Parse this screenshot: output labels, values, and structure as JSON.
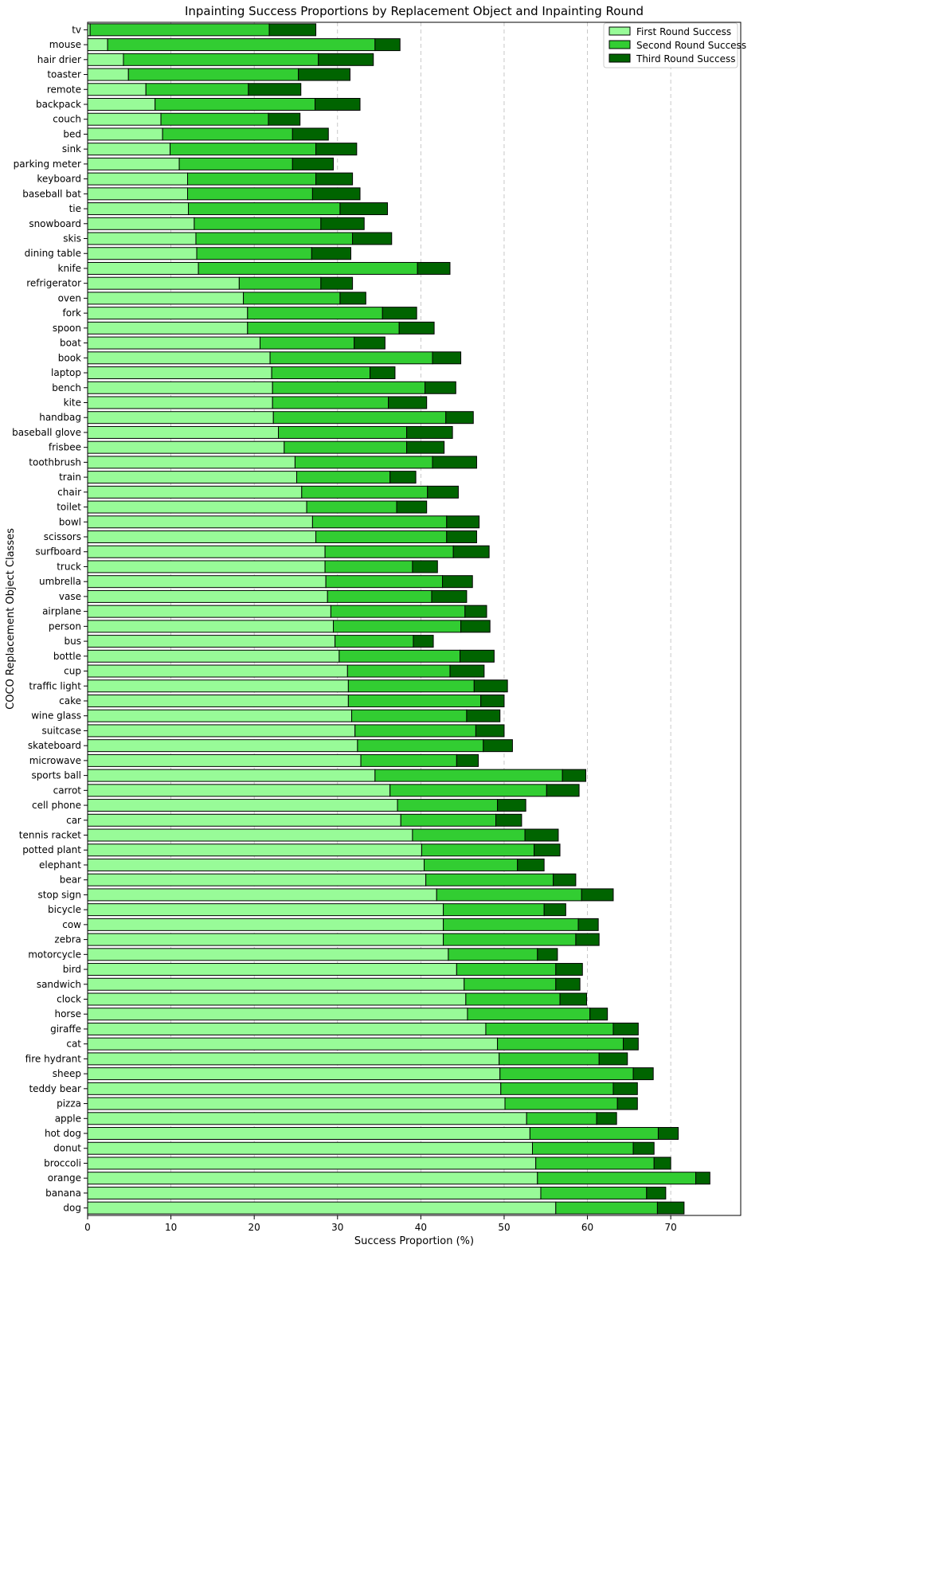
{
  "chart_data": {
    "type": "bar",
    "orientation": "horizontal",
    "stacked": true,
    "title": "Inpainting Success Proportions by Replacement Object and Inpainting Round",
    "xlabel": "Success Proportion (%)",
    "ylabel": "COCO Replacement Object Classes",
    "xlim": [
      0,
      78.4
    ],
    "xticks": [
      "0",
      "10",
      "20",
      "30",
      "40",
      "50",
      "60",
      "70"
    ],
    "grid": "x, dashed",
    "legend": "top-right",
    "categories": [
      "tv",
      "mouse",
      "hair drier",
      "toaster",
      "remote",
      "backpack",
      "couch",
      "bed",
      "sink",
      "parking meter",
      "keyboard",
      "baseball bat",
      "tie",
      "snowboard",
      "skis",
      "dining table",
      "knife",
      "refrigerator",
      "oven",
      "fork",
      "spoon",
      "boat",
      "book",
      "laptop",
      "bench",
      "kite",
      "handbag",
      "baseball glove",
      "frisbee",
      "toothbrush",
      "train",
      "chair",
      "toilet",
      "bowl",
      "scissors",
      "surfboard",
      "truck",
      "umbrella",
      "vase",
      "airplane",
      "person",
      "bus",
      "bottle",
      "cup",
      "traffic light",
      "cake",
      "wine glass",
      "suitcase",
      "skateboard",
      "microwave",
      "sports ball",
      "carrot",
      "cell phone",
      "car",
      "tennis racket",
      "potted plant",
      "elephant",
      "bear",
      "stop sign",
      "bicycle",
      "cow",
      "zebra",
      "motorcycle",
      "bird",
      "sandwich",
      "clock",
      "horse",
      "giraffe",
      "cat",
      "fire hydrant",
      "sheep",
      "teddy bear",
      "pizza",
      "apple",
      "hot dog",
      "donut",
      "broccoli",
      "orange",
      "banana",
      "dog"
    ],
    "series": [
      {
        "name": "First Round Success",
        "color": "#98fb98",
        "values": [
          0.3,
          2.4,
          4.3,
          4.9,
          7.0,
          8.1,
          8.8,
          9.0,
          9.9,
          11.0,
          12.0,
          12.0,
          12.1,
          12.8,
          13.0,
          13.1,
          13.3,
          18.2,
          18.7,
          19.2,
          19.2,
          20.7,
          21.9,
          22.1,
          22.2,
          22.2,
          22.3,
          22.9,
          23.6,
          24.9,
          25.1,
          25.7,
          26.3,
          27.0,
          27.4,
          28.5,
          28.5,
          28.6,
          28.8,
          29.2,
          29.5,
          29.7,
          30.2,
          31.2,
          31.3,
          31.3,
          31.7,
          32.1,
          32.4,
          32.8,
          34.5,
          36.3,
          37.2,
          37.6,
          39.0,
          40.1,
          40.4,
          40.6,
          41.9,
          42.7,
          42.7,
          42.7,
          43.3,
          44.3,
          45.2,
          45.4,
          45.6,
          47.8,
          49.2,
          49.4,
          49.5,
          49.6,
          50.1,
          52.7,
          53.1,
          53.4,
          53.8,
          54.0,
          54.4,
          56.2
        ]
      },
      {
        "name": "Second Round Success",
        "color": "#32cd32",
        "values": [
          21.5,
          32.1,
          23.4,
          20.4,
          12.3,
          19.2,
          12.9,
          15.6,
          17.5,
          13.6,
          15.4,
          15.0,
          18.2,
          15.2,
          18.8,
          13.8,
          26.3,
          9.8,
          11.6,
          16.2,
          18.2,
          11.3,
          19.5,
          11.8,
          18.3,
          13.9,
          20.7,
          15.4,
          14.7,
          16.5,
          11.2,
          15.1,
          10.8,
          16.1,
          15.7,
          15.4,
          10.5,
          14.0,
          12.5,
          16.1,
          15.3,
          9.4,
          14.5,
          12.3,
          15.1,
          15.9,
          13.8,
          14.5,
          15.1,
          11.5,
          22.5,
          18.8,
          12.0,
          11.4,
          13.5,
          13.5,
          11.2,
          15.3,
          17.4,
          12.1,
          16.2,
          15.9,
          10.7,
          11.9,
          11.0,
          11.3,
          14.7,
          15.3,
          15.1,
          12.0,
          16.0,
          13.5,
          13.5,
          8.4,
          15.4,
          12.1,
          14.2,
          19.0,
          12.7,
          12.2
        ]
      },
      {
        "name": "Third Round Success",
        "color": "#006400",
        "values": [
          5.6,
          3.0,
          6.6,
          6.2,
          6.3,
          5.4,
          3.8,
          4.3,
          4.9,
          4.9,
          4.4,
          5.7,
          5.7,
          5.2,
          4.7,
          4.7,
          3.9,
          3.8,
          3.1,
          4.1,
          4.2,
          3.7,
          3.4,
          3.0,
          3.7,
          4.6,
          3.3,
          5.5,
          4.5,
          5.3,
          3.1,
          3.7,
          3.6,
          3.9,
          3.6,
          4.3,
          3.0,
          3.6,
          4.2,
          2.6,
          3.5,
          2.4,
          4.1,
          4.1,
          4.0,
          2.8,
          4.0,
          3.4,
          3.5,
          2.6,
          2.8,
          3.9,
          3.4,
          3.1,
          4.0,
          3.1,
          3.2,
          2.7,
          3.8,
          2.6,
          2.4,
          2.8,
          2.4,
          3.2,
          2.9,
          3.2,
          2.1,
          3.0,
          1.8,
          3.4,
          2.4,
          2.9,
          2.4,
          2.4,
          2.4,
          2.5,
          2.0,
          1.7,
          2.3,
          3.2
        ]
      }
    ]
  }
}
